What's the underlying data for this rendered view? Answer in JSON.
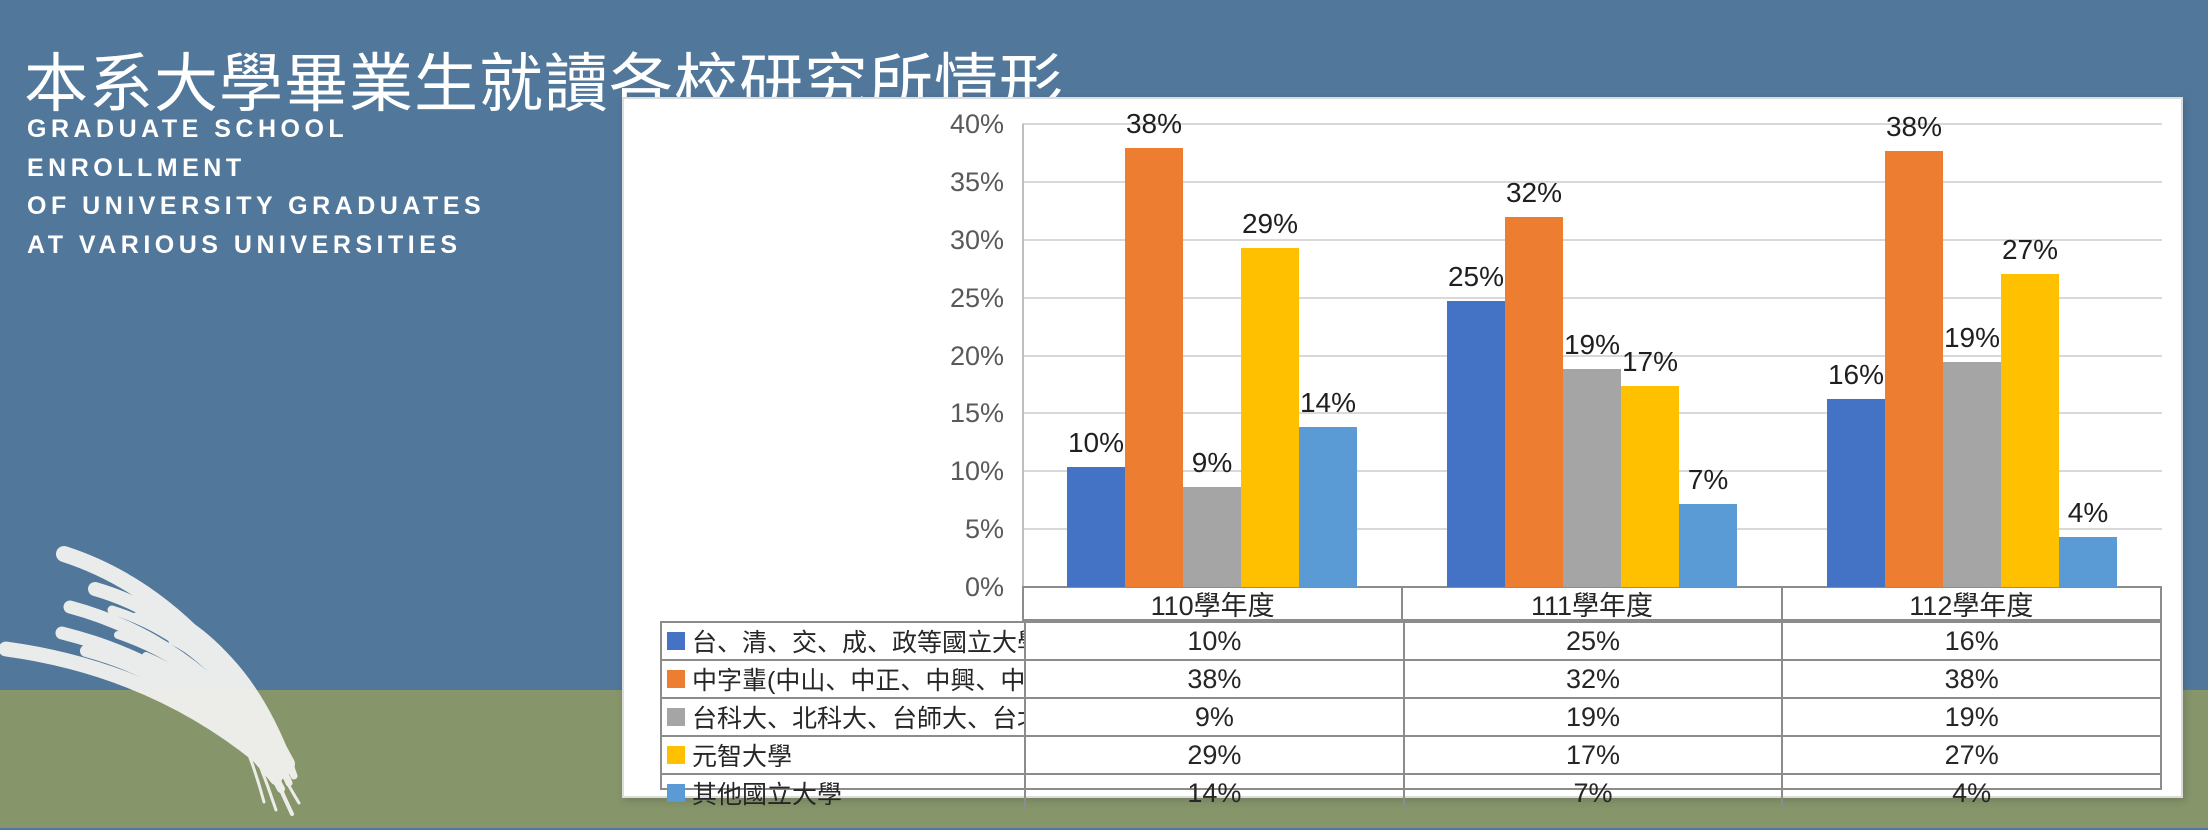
{
  "slide": {
    "title": "本系大學畢業生就讀各校研究所情形",
    "subtitle_lines": [
      "GRADUATE SCHOOL",
      "ENROLLMENT",
      "OF UNIVERSITY GRADUATES",
      "AT VARIOUS UNIVERSITIES"
    ],
    "colors": {
      "background_top": "#51779B",
      "background_bottom": "#87956A",
      "panel": "#FFFFFF",
      "title_text": "#FFFFFF",
      "grass_decoration": "#F1F1EF",
      "gridline": "#D9D9D9",
      "axis_text": "#595959",
      "table_border": "#8C8C8C"
    }
  },
  "chart_data": {
    "type": "bar",
    "title": "",
    "xlabel": "",
    "ylabel": "",
    "categories": [
      "110學年度",
      "111學年度",
      "112學年度"
    ],
    "series": [
      {
        "name": "台、清、交、成、政等國立大學",
        "color": "#4472C4",
        "values": [
          10,
          25,
          16
        ],
        "bar_heights_est": [
          10.4,
          24.7,
          16.2
        ]
      },
      {
        "name": "中字輩(中山、中正、中興、中央)",
        "color": "#ED7D31",
        "values": [
          38,
          32,
          38
        ],
        "bar_heights_est": [
          37.9,
          32.0,
          37.7
        ]
      },
      {
        "name": "台科大、北科大、台師大、台北大學",
        "color": "#A5A5A5",
        "values": [
          9,
          19,
          19
        ],
        "bar_heights_est": [
          8.6,
          18.8,
          19.4
        ]
      },
      {
        "name": "元智大學",
        "color": "#FFC000",
        "values": [
          29,
          17,
          27
        ],
        "bar_heights_est": [
          29.3,
          17.4,
          27.0
        ]
      },
      {
        "name": "其他國立大學",
        "color": "#5B9BD5",
        "values": [
          14,
          7,
          4
        ],
        "bar_heights_est": [
          13.8,
          7.2,
          4.3
        ]
      }
    ],
    "value_suffix": "%",
    "ylim": [
      0,
      40
    ],
    "y_ticks": [
      "0%",
      "5%",
      "10%",
      "15%",
      "20%",
      "25%",
      "30%",
      "35%",
      "40%"
    ],
    "gridlines": true,
    "data_labels": true,
    "data_table_shown": true,
    "legend_position": "data-table-keys"
  }
}
